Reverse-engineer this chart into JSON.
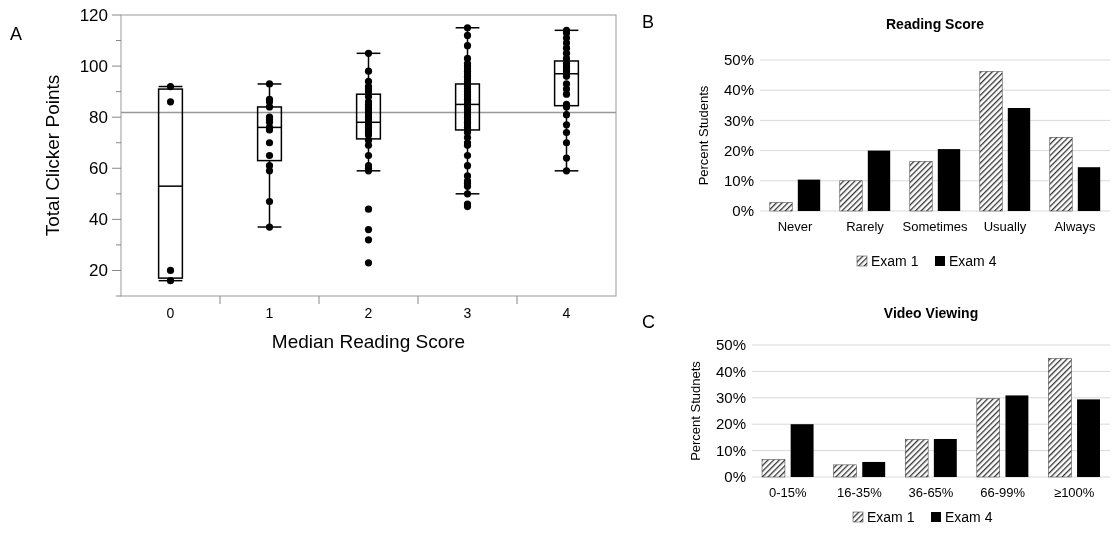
{
  "chart_data": [
    {
      "type": "box",
      "xlabel": "Median Reading Score",
      "ylabel": "Total Clicker Points",
      "annotations": [
        "A"
      ],
      "categories": [
        "0",
        "1",
        "2",
        "3",
        "4"
      ],
      "boxes": [
        {
          "low": 16,
          "q1": 17,
          "median": 53,
          "q3": 91,
          "high": 92
        },
        {
          "low": 37,
          "q1": 63,
          "median": 76,
          "q3": 84,
          "high": 93
        },
        {
          "low": 59,
          "q1": 71.5,
          "median": 78,
          "q3": 89,
          "high": 105
        },
        {
          "low": 50,
          "q1": 75,
          "median": 85,
          "q3": 93,
          "high": 115
        },
        {
          "low": 59,
          "q1": 84.5,
          "median": 97,
          "q3": 102,
          "high": 114
        }
      ],
      "series": [
        {
          "type": "scatter",
          "color": "#000000",
          "x": [
            "0",
            "0",
            "0",
            "0",
            "1",
            "1",
            "1",
            "1",
            "1",
            "1",
            "1",
            "1",
            "1",
            "1",
            "1",
            "1",
            "1",
            "1",
            "1",
            "2",
            "2",
            "2",
            "2",
            "2",
            "2",
            "2",
            "2",
            "2",
            "2",
            "2",
            "2",
            "2",
            "2",
            "2",
            "2",
            "2",
            "2",
            "2",
            "2",
            "2",
            "2",
            "2",
            "2",
            "2",
            "2",
            "2",
            "2",
            "2",
            "2",
            "2",
            "3",
            "3",
            "3",
            "3",
            "3",
            "3",
            "3",
            "3",
            "3",
            "3",
            "3",
            "3",
            "3",
            "3",
            "3",
            "3",
            "3",
            "3",
            "3",
            "3",
            "3",
            "3",
            "3",
            "3",
            "3",
            "3",
            "3",
            "3",
            "3",
            "3",
            "3",
            "3",
            "3",
            "3",
            "3",
            "3",
            "3",
            "3",
            "3",
            "3",
            "3",
            "3",
            "3",
            "3",
            "4",
            "4",
            "4",
            "4",
            "4",
            "4",
            "4",
            "4",
            "4",
            "4",
            "4",
            "4",
            "4",
            "4",
            "4",
            "4",
            "4",
            "4",
            "4",
            "4",
            "4",
            "4",
            "4",
            "4"
          ],
          "values": [
            92,
            86,
            20,
            16,
            93,
            87,
            86,
            84,
            80,
            79,
            78,
            76,
            75,
            70,
            65,
            61,
            59,
            47,
            37,
            105,
            98,
            94,
            92,
            91,
            90,
            88,
            86,
            85,
            84,
            83,
            82,
            81,
            80,
            79,
            78,
            77,
            76,
            75,
            74,
            73,
            71,
            69,
            65,
            61,
            60,
            59,
            44,
            36,
            32,
            23,
            115,
            112,
            108,
            103,
            101,
            100,
            99,
            98,
            97,
            96,
            95,
            94,
            93,
            92,
            91,
            90,
            89,
            88,
            87,
            86,
            85,
            84,
            83,
            82,
            81,
            80,
            79,
            78,
            77,
            76,
            75,
            74,
            72,
            70,
            69,
            65,
            61,
            57,
            55,
            54,
            53,
            50,
            46,
            45,
            114,
            113,
            111,
            109,
            107,
            105,
            103,
            101,
            100,
            99,
            98,
            97,
            96,
            93,
            91,
            89,
            85,
            84,
            81,
            77,
            74,
            70,
            64,
            59
          ]
        }
      ],
      "ref_lines": [
        {
          "axis": "y",
          "value": 81.8,
          "color": "#999999"
        }
      ],
      "ylim": [
        10,
        120
      ],
      "yticks": [
        {
          "value": 10,
          "label": null
        },
        20,
        {
          "value": 30,
          "label": null
        },
        40,
        {
          "value": 50,
          "label": null
        },
        60,
        {
          "value": 70,
          "label": null
        },
        80,
        {
          "value": 90,
          "label": null
        },
        100,
        {
          "value": 110,
          "label": null
        },
        120
      ],
      "grid": false
    },
    {
      "type": "bar",
      "title": "Reading Score",
      "ylabel": "Percent Students",
      "annotations": [
        "B"
      ],
      "categories": [
        "Never",
        "Rarely",
        "Sometimes",
        "Usually",
        "Always"
      ],
      "series": [
        {
          "name": "Exam 1",
          "color": "#333333",
          "values": [
            2.8,
            10,
            16.4,
            46.2,
            24.4
          ]
        },
        {
          "name": "Exam 4",
          "color": "#000000",
          "values": [
            10.4,
            20,
            20.5,
            34.1,
            14.5
          ]
        }
      ],
      "ylim": [
        0,
        50
      ],
      "yticks": [
        {
          "value": 0,
          "label": "0%"
        },
        {
          "value": 10,
          "label": "10%"
        },
        {
          "value": 20,
          "label": "20%"
        },
        {
          "value": 30,
          "label": "30%"
        },
        {
          "value": 40,
          "label": "40%"
        },
        {
          "value": 50,
          "label": "50%"
        }
      ],
      "grid": "y",
      "legend": "bottom"
    },
    {
      "type": "bar",
      "title": "Video Viewing",
      "ylabel": "Percent Studnets",
      "annotations": [
        "C"
      ],
      "categories": [
        "0-15%",
        "16-35%",
        "36-65%",
        "66-99%",
        "≥100%"
      ],
      "series": [
        {
          "name": "Exam 1",
          "color": "#333333",
          "values": [
            6.6,
            4.6,
            14.2,
            29.7,
            44.9
          ]
        },
        {
          "name": "Exam 4",
          "color": "#000000",
          "values": [
            20,
            5.7,
            14.4,
            30.9,
            29.4
          ]
        }
      ],
      "ylim": [
        0,
        50
      ],
      "yticks": [
        {
          "value": 0,
          "label": "0%"
        },
        {
          "value": 10,
          "label": "10%"
        },
        {
          "value": 20,
          "label": "20%"
        },
        {
          "value": 30,
          "label": "30%"
        },
        {
          "value": 40,
          "label": "40%"
        },
        {
          "value": 50,
          "label": "50%"
        }
      ],
      "grid": "y",
      "legend": "bottom"
    }
  ]
}
